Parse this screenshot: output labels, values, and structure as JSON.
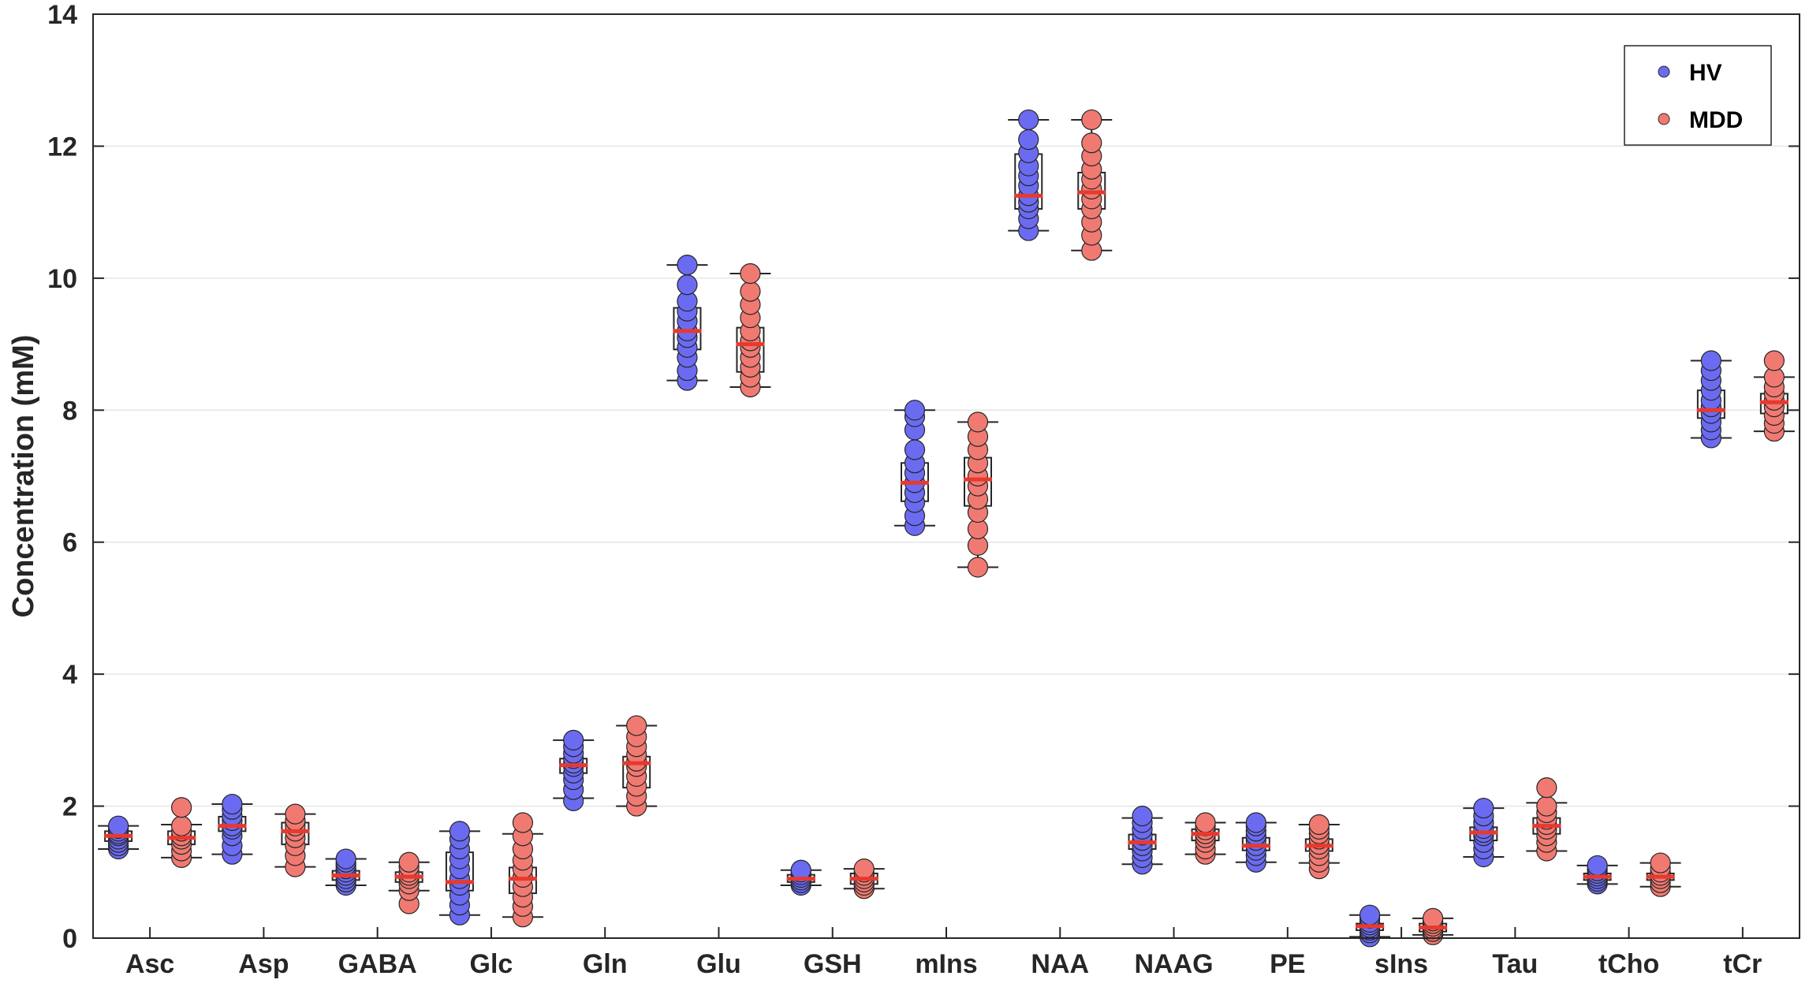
{
  "chart_data": {
    "type": "box-scatter",
    "ylabel": "Concentration (mM)",
    "ylim": [
      0,
      14
    ],
    "yticks": [
      0,
      2,
      4,
      6,
      8,
      10,
      12,
      14
    ],
    "grid": "horizontal",
    "legend_placement": "top-right",
    "categories": [
      "Asc",
      "Asp",
      "GABA",
      "Glc",
      "Gln",
      "Glu",
      "GSH",
      "mIns",
      "NAA",
      "NAAG",
      "PE",
      "sIns",
      "Tau",
      "tCho",
      "tCr"
    ],
    "series": [
      {
        "name": "HV",
        "color": "#6B6BF2",
        "stats": [
          {
            "min": 1.35,
            "q1": 1.47,
            "median": 1.55,
            "q3": 1.62,
            "max": 1.7
          },
          {
            "min": 1.27,
            "q1": 1.62,
            "median": 1.7,
            "q3": 1.84,
            "max": 2.03
          },
          {
            "min": 0.8,
            "q1": 0.88,
            "median": 0.95,
            "q3": 1.02,
            "max": 1.2
          },
          {
            "min": 0.35,
            "q1": 0.72,
            "median": 0.85,
            "q3": 1.3,
            "max": 1.62
          },
          {
            "min": 2.12,
            "q1": 2.5,
            "median": 2.62,
            "q3": 2.72,
            "max": 3.0
          },
          {
            "min": 8.45,
            "q1": 8.92,
            "median": 9.2,
            "q3": 9.55,
            "max": 10.2
          },
          {
            "min": 0.8,
            "q1": 0.85,
            "median": 0.9,
            "q3": 0.96,
            "max": 1.03
          },
          {
            "min": 6.25,
            "q1": 6.62,
            "median": 6.9,
            "q3": 7.2,
            "max": 8.0
          },
          {
            "min": 10.72,
            "q1": 11.05,
            "median": 11.25,
            "q3": 11.88,
            "max": 12.4
          },
          {
            "min": 1.12,
            "q1": 1.35,
            "median": 1.45,
            "q3": 1.57,
            "max": 1.82
          },
          {
            "min": 1.15,
            "q1": 1.33,
            "median": 1.4,
            "q3": 1.52,
            "max": 1.75
          },
          {
            "min": 0.02,
            "q1": 0.12,
            "median": 0.18,
            "q3": 0.22,
            "max": 0.35
          },
          {
            "min": 1.23,
            "q1": 1.48,
            "median": 1.6,
            "q3": 1.68,
            "max": 1.97
          },
          {
            "min": 0.82,
            "q1": 0.88,
            "median": 0.93,
            "q3": 0.98,
            "max": 1.1
          },
          {
            "min": 7.58,
            "q1": 7.88,
            "median": 8.0,
            "q3": 8.3,
            "max": 8.75
          }
        ],
        "points": [
          [
            1.35,
            1.4,
            1.45,
            1.5,
            1.55,
            1.58,
            1.62,
            1.66,
            1.7
          ],
          [
            1.27,
            1.4,
            1.55,
            1.65,
            1.7,
            1.78,
            1.85,
            1.95,
            2.03
          ],
          [
            0.8,
            0.85,
            0.9,
            0.95,
            1.0,
            1.05,
            1.1,
            1.15,
            1.2
          ],
          [
            0.35,
            0.5,
            0.65,
            0.8,
            0.9,
            1.05,
            1.2,
            1.35,
            1.5,
            1.62
          ],
          [
            2.08,
            2.25,
            2.4,
            2.5,
            2.6,
            2.65,
            2.72,
            2.8,
            2.9,
            3.0
          ],
          [
            8.45,
            8.6,
            8.8,
            8.95,
            9.1,
            9.2,
            9.35,
            9.5,
            9.65,
            9.9,
            10.2
          ],
          [
            0.8,
            0.84,
            0.88,
            0.92,
            0.96,
            1.0,
            1.03
          ],
          [
            6.25,
            6.4,
            6.6,
            6.75,
            6.9,
            7.05,
            7.2,
            7.4,
            7.7,
            7.9,
            8.0
          ],
          [
            10.72,
            10.9,
            11.05,
            11.15,
            11.25,
            11.4,
            11.55,
            11.7,
            11.9,
            12.1,
            12.4
          ],
          [
            1.12,
            1.22,
            1.32,
            1.4,
            1.48,
            1.56,
            1.65,
            1.75,
            1.85
          ],
          [
            1.15,
            1.25,
            1.33,
            1.4,
            1.48,
            1.55,
            1.62,
            1.7,
            1.75
          ],
          [
            0.02,
            0.08,
            0.12,
            0.16,
            0.2,
            0.24,
            0.3,
            0.35
          ],
          [
            1.23,
            1.35,
            1.45,
            1.55,
            1.6,
            1.66,
            1.75,
            1.85,
            1.97
          ],
          [
            0.82,
            0.86,
            0.9,
            0.94,
            0.98,
            1.02,
            1.06,
            1.1
          ],
          [
            7.58,
            7.7,
            7.82,
            7.95,
            8.05,
            8.15,
            8.3,
            8.45,
            8.6,
            8.75
          ]
        ]
      },
      {
        "name": "MDD",
        "color": "#F07A72",
        "stats": [
          {
            "min": 1.22,
            "q1": 1.42,
            "median": 1.52,
            "q3": 1.62,
            "max": 1.72
          },
          {
            "min": 1.08,
            "q1": 1.42,
            "median": 1.62,
            "q3": 1.75,
            "max": 1.88
          },
          {
            "min": 0.72,
            "q1": 0.85,
            "median": 0.93,
            "q3": 1.0,
            "max": 1.15
          },
          {
            "min": 0.32,
            "q1": 0.68,
            "median": 0.9,
            "q3": 1.07,
            "max": 1.58
          },
          {
            "min": 2.0,
            "q1": 2.28,
            "median": 2.65,
            "q3": 2.75,
            "max": 3.22
          },
          {
            "min": 8.35,
            "q1": 8.58,
            "median": 9.0,
            "q3": 9.25,
            "max": 10.07
          },
          {
            "min": 0.75,
            "q1": 0.82,
            "median": 0.9,
            "q3": 0.98,
            "max": 1.05
          },
          {
            "min": 5.62,
            "q1": 6.55,
            "median": 6.95,
            "q3": 7.28,
            "max": 7.82
          },
          {
            "min": 10.42,
            "q1": 11.05,
            "median": 11.3,
            "q3": 11.6,
            "max": 12.4
          },
          {
            "min": 1.27,
            "q1": 1.48,
            "median": 1.58,
            "q3": 1.65,
            "max": 1.75
          },
          {
            "min": 1.14,
            "q1": 1.32,
            "median": 1.4,
            "q3": 1.5,
            "max": 1.72
          },
          {
            "min": 0.05,
            "q1": 0.1,
            "median": 0.16,
            "q3": 0.22,
            "max": 0.3
          },
          {
            "min": 1.32,
            "q1": 1.58,
            "median": 1.7,
            "q3": 1.82,
            "max": 2.05
          },
          {
            "min": 0.78,
            "q1": 0.88,
            "median": 0.93,
            "q3": 0.98,
            "max": 1.14
          },
          {
            "min": 7.68,
            "q1": 7.95,
            "median": 8.12,
            "q3": 8.25,
            "max": 8.5
          }
        ],
        "points": [
          [
            1.22,
            1.32,
            1.42,
            1.5,
            1.55,
            1.62,
            1.7,
            1.98
          ],
          [
            1.08,
            1.25,
            1.4,
            1.52,
            1.62,
            1.7,
            1.78,
            1.88
          ],
          [
            0.52,
            0.72,
            0.82,
            0.9,
            0.95,
            1.0,
            1.08,
            1.15
          ],
          [
            0.32,
            0.48,
            0.62,
            0.78,
            0.92,
            1.05,
            1.18,
            1.35,
            1.55,
            1.75
          ],
          [
            2.0,
            2.15,
            2.3,
            2.45,
            2.6,
            2.68,
            2.78,
            2.9,
            3.05,
            3.22
          ],
          [
            8.35,
            8.5,
            8.65,
            8.8,
            8.95,
            9.05,
            9.2,
            9.4,
            9.6,
            9.8,
            10.07
          ],
          [
            0.75,
            0.8,
            0.85,
            0.9,
            0.95,
            1.0,
            1.05
          ],
          [
            5.62,
            5.95,
            6.2,
            6.45,
            6.65,
            6.85,
            7.0,
            7.2,
            7.4,
            7.6,
            7.82
          ],
          [
            10.42,
            10.65,
            10.85,
            11.05,
            11.2,
            11.35,
            11.5,
            11.65,
            11.85,
            12.05,
            12.4
          ],
          [
            1.27,
            1.35,
            1.45,
            1.52,
            1.58,
            1.64,
            1.7,
            1.75
          ],
          [
            1.05,
            1.15,
            1.25,
            1.35,
            1.42,
            1.5,
            1.58,
            1.65,
            1.72
          ],
          [
            0.05,
            0.1,
            0.14,
            0.18,
            0.22,
            0.26,
            0.3
          ],
          [
            1.32,
            1.45,
            1.55,
            1.65,
            1.72,
            1.8,
            1.9,
            2.0,
            2.28
          ],
          [
            0.78,
            0.84,
            0.9,
            0.95,
            1.0,
            1.06,
            1.14
          ],
          [
            7.68,
            7.8,
            7.92,
            8.05,
            8.15,
            8.25,
            8.35,
            8.5,
            8.75
          ]
        ]
      }
    ],
    "median_color": "#E8392E"
  }
}
